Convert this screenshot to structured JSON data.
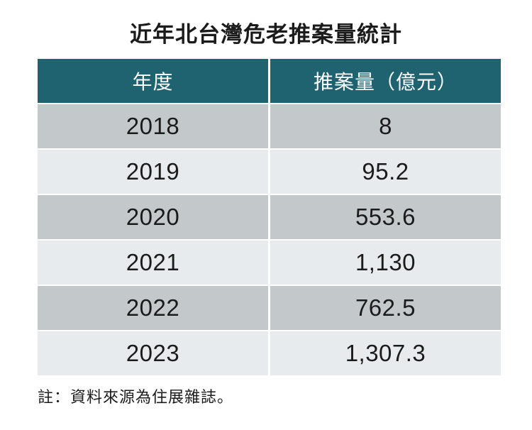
{
  "title": "近年北台灣危老推案量統計",
  "table": {
    "headers": [
      "年度",
      "推案量（億元）"
    ],
    "rows": [
      {
        "year": "2018",
        "volume": "8"
      },
      {
        "year": "2019",
        "volume": "95.2"
      },
      {
        "year": "2020",
        "volume": "553.6"
      },
      {
        "year": "2021",
        "volume": "1,130"
      },
      {
        "year": "2022",
        "volume": "762.5"
      },
      {
        "year": "2023",
        "volume": "1,307.3"
      }
    ]
  },
  "note": "註：資料來源為住展雜誌。",
  "colors": {
    "header_bg": "#1F6270",
    "header_text": "#FFFFFF",
    "row_dark": "#C3C8CB",
    "row_light": "#E7EBED",
    "text": "#1B1B1B"
  },
  "chart_data": {
    "type": "table",
    "title": "近年北台灣危老推案量統計",
    "columns": [
      "年度",
      "推案量（億元）"
    ],
    "categories": [
      "2018",
      "2019",
      "2020",
      "2021",
      "2022",
      "2023"
    ],
    "values": [
      8,
      95.2,
      553.6,
      1130,
      762.5,
      1307.3
    ],
    "unit": "億元",
    "note": "註：資料來源為住展雜誌。",
    "legend_position": "none",
    "grid": false
  }
}
